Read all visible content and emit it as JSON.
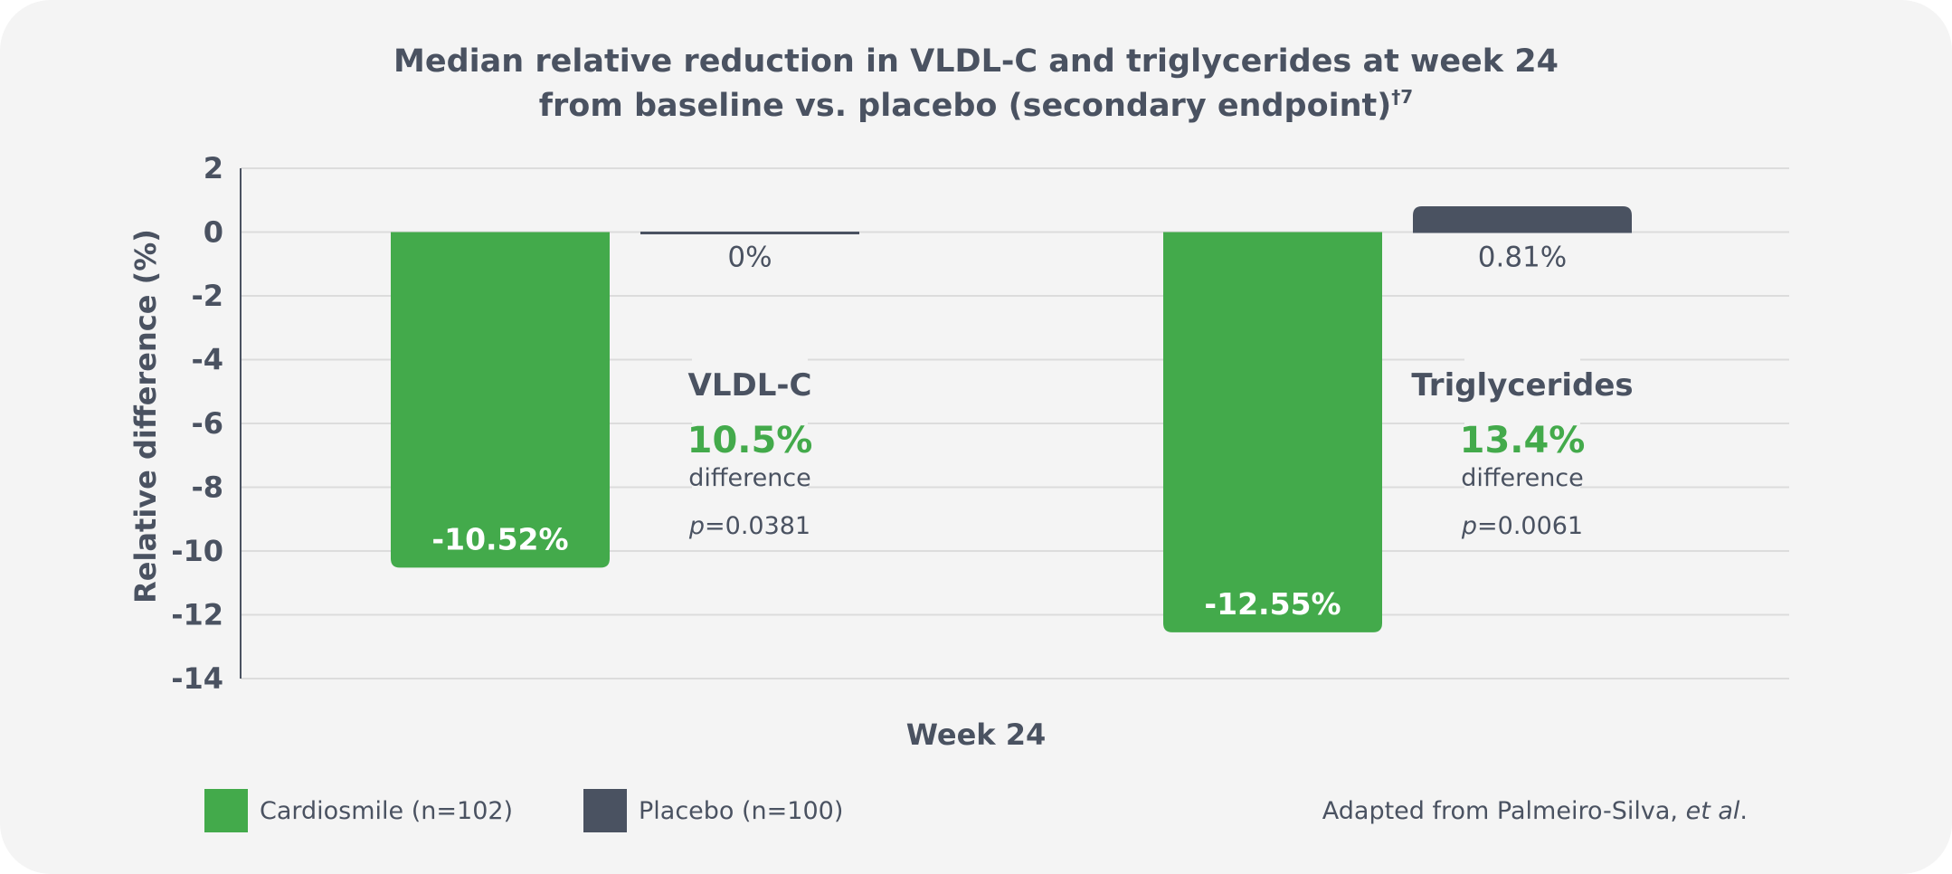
{
  "title_line1": "Median relative reduction in VLDL-C and triglycerides at week 24",
  "title_line2": "from baseline vs. placebo (secondary endpoint)",
  "title_superscript": "†7",
  "chart_data": {
    "type": "bar",
    "categories": [
      "VLDL-C",
      "Triglycerides"
    ],
    "series": [
      {
        "name": "Cardiosmile (n=102)",
        "values": [
          -10.52,
          -12.55
        ],
        "labels": [
          "-10.52%",
          "-12.55%"
        ],
        "color": "#43aa4b"
      },
      {
        "name": "Placebo (n=100)",
        "values": [
          0,
          0.81
        ],
        "labels": [
          "0%",
          "0.81%"
        ],
        "color": "#4a5261"
      }
    ],
    "differences": [
      {
        "category": "VLDL-C",
        "value": "10.5%",
        "word": "difference",
        "p_prefix": "p",
        "p_value": "=0.0381"
      },
      {
        "category": "Triglycerides",
        "value": "13.4%",
        "word": "difference",
        "p_prefix": "p",
        "p_value": "=0.0061"
      }
    ],
    "xlabel": "Week 24",
    "ylabel": "Relative difference (%)",
    "ylim": [
      -14,
      2
    ],
    "yticks": [
      2,
      0,
      -2,
      -4,
      -6,
      -8,
      -10,
      -12,
      -14
    ],
    "grid": true,
    "legend_position": "bottom-left"
  },
  "source": {
    "text": "Adapted from Palmeiro-Silva, ",
    "italic": "et al",
    "end": "."
  },
  "colors": {
    "treatment": "#43aa4b",
    "placebo": "#4a5261",
    "background": "#f4f4f4",
    "grid": "#dcdcdc",
    "text": "#4a5261"
  }
}
